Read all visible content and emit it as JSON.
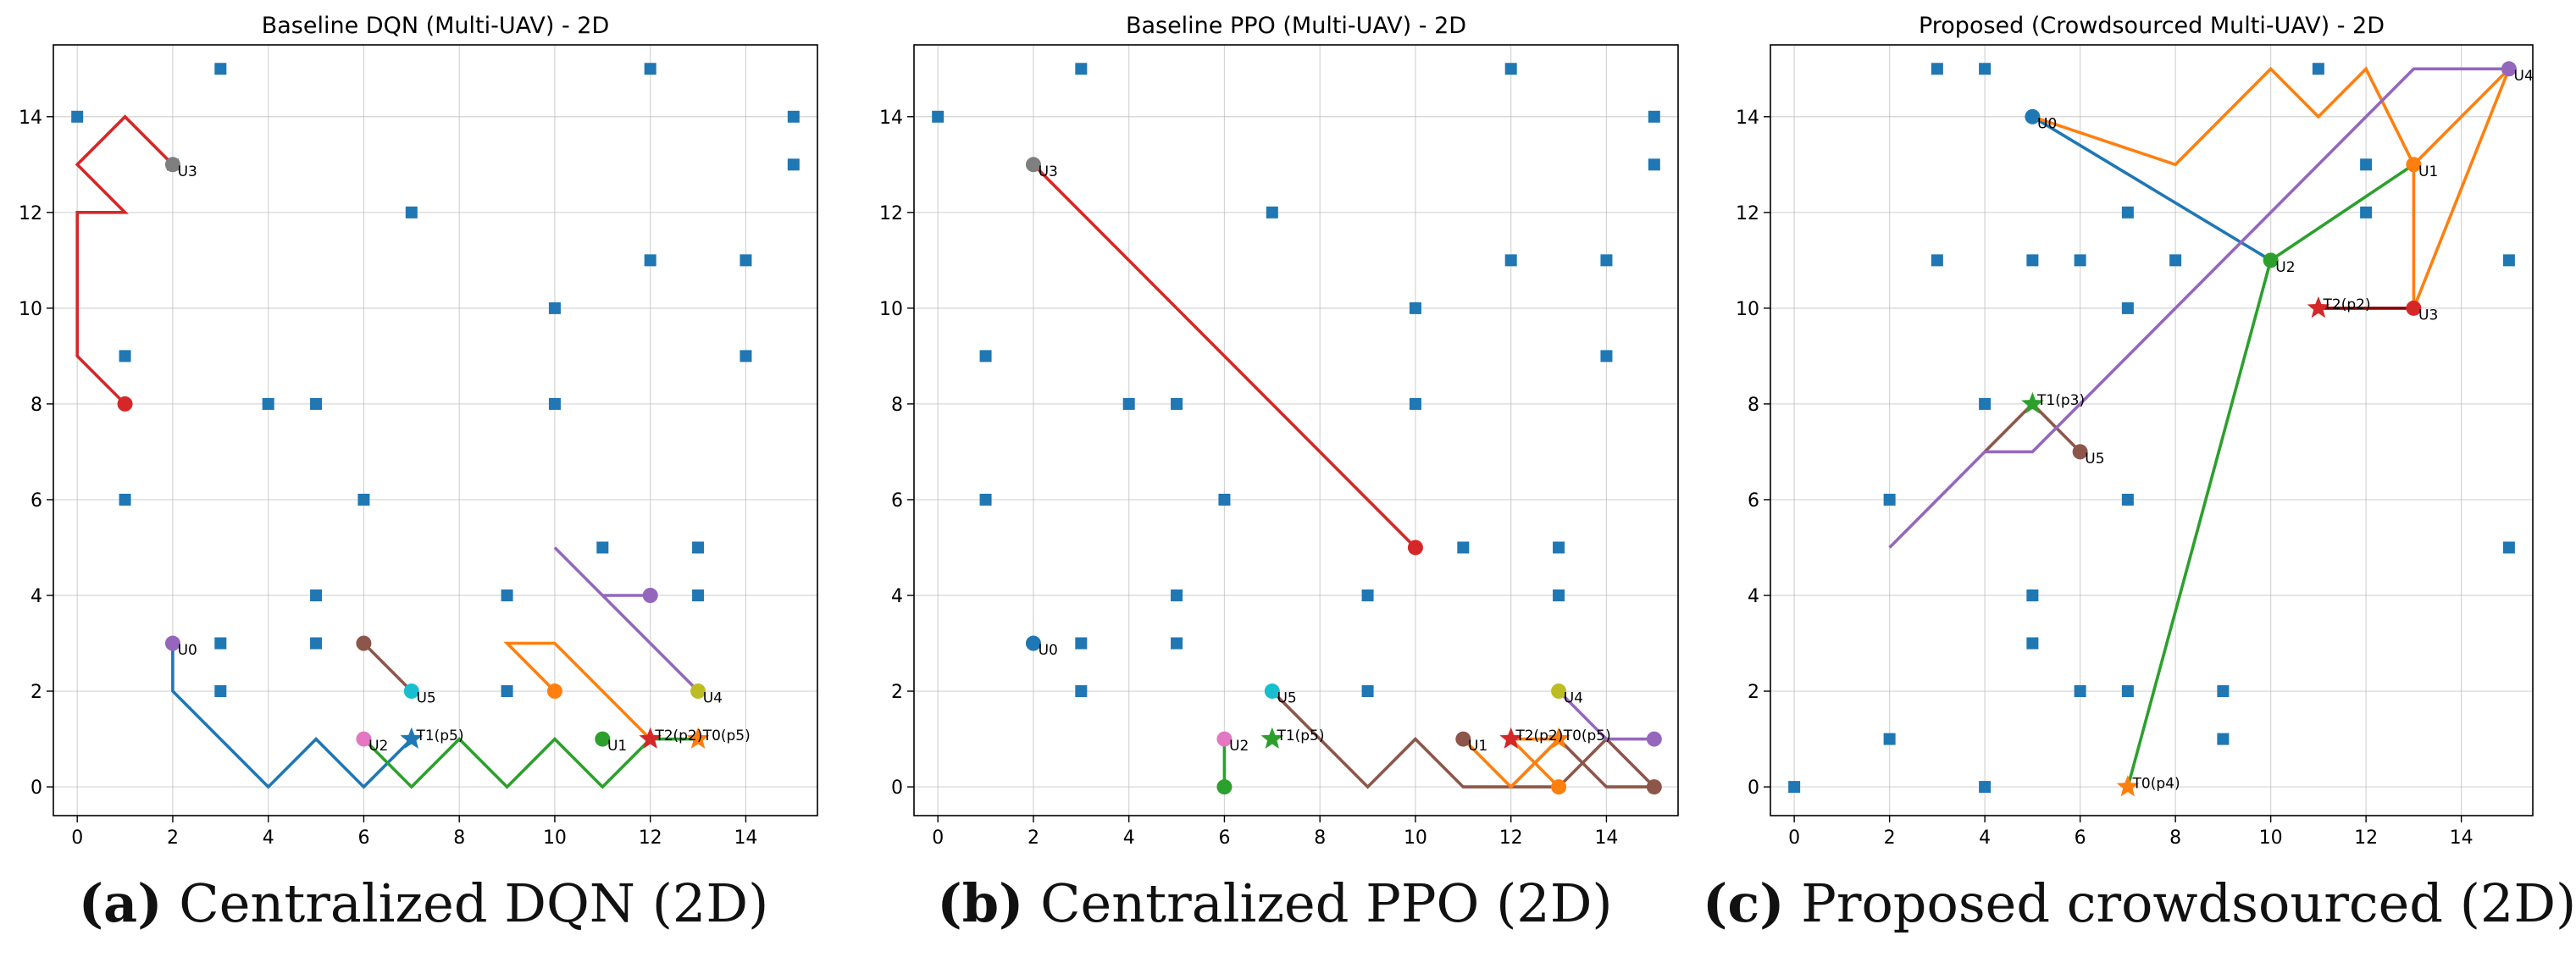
{
  "chart_data": [
    {
      "type": "scatter",
      "title": "Baseline DQN (Multi-UAV) - 2D",
      "caption_letter": "(a)",
      "caption_text": " Centralized DQN (2D)",
      "xlim": [
        -0.5,
        15.5
      ],
      "ylim": [
        -0.6,
        15.5
      ],
      "xticks": [
        0,
        2,
        4,
        6,
        8,
        10,
        12,
        14
      ],
      "yticks": [
        0,
        2,
        4,
        6,
        8,
        10,
        12,
        14
      ],
      "grid": true,
      "obstacles": [
        [
          0,
          14
        ],
        [
          1,
          9
        ],
        [
          1,
          6
        ],
        [
          2,
          13
        ],
        [
          3,
          15
        ],
        [
          3,
          3
        ],
        [
          3,
          2
        ],
        [
          4,
          8
        ],
        [
          5,
          8
        ],
        [
          5,
          4
        ],
        [
          5,
          3
        ],
        [
          6,
          6
        ],
        [
          7,
          12
        ],
        [
          9,
          4
        ],
        [
          9,
          2
        ],
        [
          10,
          10
        ],
        [
          10,
          8
        ],
        [
          11,
          5
        ],
        [
          12,
          15
        ],
        [
          12,
          11
        ],
        [
          13,
          5
        ],
        [
          13,
          4
        ],
        [
          14,
          11
        ],
        [
          14,
          9
        ],
        [
          15,
          14
        ],
        [
          15,
          13
        ]
      ],
      "paths": [
        {
          "color": "#d62728",
          "points": [
            [
              1,
              8
            ],
            [
              0,
              9
            ],
            [
              0,
              12
            ],
            [
              1,
              12
            ],
            [
              0,
              13
            ],
            [
              1,
              14
            ],
            [
              2,
              13
            ]
          ]
        },
        {
          "color": "#1f77b4",
          "points": [
            [
              2,
              3
            ],
            [
              2,
              2
            ],
            [
              3,
              1
            ],
            [
              4,
              0
            ],
            [
              5,
              1
            ],
            [
              6,
              0
            ],
            [
              7,
              1
            ]
          ]
        },
        {
          "color": "#2ca02c",
          "points": [
            [
              6,
              1
            ],
            [
              7,
              0
            ],
            [
              8,
              1
            ],
            [
              9,
              0
            ],
            [
              10,
              1
            ],
            [
              11,
              0
            ],
            [
              12,
              1
            ],
            [
              13,
              1
            ]
          ]
        },
        {
          "color": "#ff7f0e",
          "points": [
            [
              10,
              2
            ],
            [
              9,
              3
            ],
            [
              10,
              3
            ],
            [
              12,
              1
            ]
          ]
        },
        {
          "color": "#9467bd",
          "points": [
            [
              12,
              4
            ],
            [
              11,
              4
            ],
            [
              10,
              5
            ],
            [
              11,
              4
            ],
            [
              13,
              2
            ]
          ]
        },
        {
          "color": "#8c564b",
          "points": [
            [
              6,
              3
            ],
            [
              7,
              2
            ]
          ]
        }
      ],
      "dots": [
        {
          "x": 1,
          "y": 8,
          "color": "#d62728"
        },
        {
          "x": 2,
          "y": 13,
          "color": "#7f7f7f"
        },
        {
          "x": 2,
          "y": 3,
          "color": "#9467bd"
        },
        {
          "x": 6,
          "y": 3,
          "color": "#8c564b"
        },
        {
          "x": 7,
          "y": 2,
          "color": "#17becf"
        },
        {
          "x": 6,
          "y": 1,
          "color": "#e377c2"
        },
        {
          "x": 10,
          "y": 2,
          "color": "#ff7f0e"
        },
        {
          "x": 11,
          "y": 1,
          "color": "#2ca02c"
        },
        {
          "x": 12,
          "y": 4,
          "color": "#9467bd"
        },
        {
          "x": 13,
          "y": 2,
          "color": "#bcbd22"
        }
      ],
      "stars": [
        {
          "x": 7,
          "y": 1,
          "color": "#1f77b4"
        },
        {
          "x": 12,
          "y": 1,
          "color": "#d62728"
        },
        {
          "x": 13,
          "y": 1,
          "color": "#ff7f0e"
        }
      ],
      "labels": [
        {
          "text": "U3",
          "x": 2,
          "y": 13,
          "dx": 0.1,
          "dy": -0.1
        },
        {
          "text": "U0",
          "x": 2,
          "y": 3,
          "dx": 0.1,
          "dy": -0.1
        },
        {
          "text": "U5",
          "x": 7,
          "y": 2,
          "dx": 0.1,
          "dy": -0.1
        },
        {
          "text": "U2",
          "x": 6,
          "y": 1,
          "dx": 0.1,
          "dy": -0.1
        },
        {
          "text": "U1",
          "x": 11,
          "y": 1,
          "dx": 0.1,
          "dy": -0.1
        },
        {
          "text": "U4",
          "x": 13,
          "y": 2,
          "dx": 0.1,
          "dy": -0.1
        },
        {
          "text": "T1(p5)",
          "x": 7,
          "y": 1,
          "dx": 0.1,
          "dy": 0.12
        },
        {
          "text": "T2(p2)",
          "x": 12,
          "y": 1,
          "dx": 0.1,
          "dy": 0.12
        },
        {
          "text": "T0(p5)",
          "x": 13,
          "y": 1,
          "dx": 0.1,
          "dy": 0.12
        }
      ]
    },
    {
      "type": "scatter",
      "title": "Baseline PPO (Multi-UAV) - 2D",
      "caption_letter": "(b)",
      "caption_text": " Centralized PPO (2D)",
      "xlim": [
        -0.5,
        15.5
      ],
      "ylim": [
        -0.6,
        15.5
      ],
      "xticks": [
        0,
        2,
        4,
        6,
        8,
        10,
        12,
        14
      ],
      "yticks": [
        0,
        2,
        4,
        6,
        8,
        10,
        12,
        14
      ],
      "grid": true,
      "obstacles": [
        [
          0,
          14
        ],
        [
          1,
          9
        ],
        [
          1,
          6
        ],
        [
          3,
          15
        ],
        [
          3,
          3
        ],
        [
          3,
          2
        ],
        [
          4,
          8
        ],
        [
          5,
          8
        ],
        [
          5,
          4
        ],
        [
          5,
          3
        ],
        [
          6,
          6
        ],
        [
          7,
          12
        ],
        [
          9,
          4
        ],
        [
          9,
          2
        ],
        [
          10,
          10
        ],
        [
          10,
          8
        ],
        [
          11,
          5
        ],
        [
          12,
          15
        ],
        [
          12,
          11
        ],
        [
          13,
          5
        ],
        [
          13,
          4
        ],
        [
          14,
          11
        ],
        [
          14,
          9
        ],
        [
          15,
          14
        ],
        [
          15,
          13
        ]
      ],
      "paths": [
        {
          "color": "#d62728",
          "points": [
            [
              2,
              13
            ],
            [
              10,
              5
            ]
          ]
        },
        {
          "color": "#2ca02c",
          "points": [
            [
              6,
              1
            ],
            [
              6,
              0
            ]
          ]
        },
        {
          "color": "#8c564b",
          "points": [
            [
              7,
              2
            ],
            [
              8,
              1
            ],
            [
              9,
              0
            ],
            [
              10,
              1
            ],
            [
              11,
              0
            ],
            [
              13,
              0
            ],
            [
              14,
              1
            ],
            [
              15,
              0
            ],
            [
              14,
              0
            ],
            [
              13,
              1
            ],
            [
              12,
              0
            ]
          ]
        },
        {
          "color": "#ff7f0e",
          "points": [
            [
              11,
              1
            ],
            [
              12,
              0
            ],
            [
              13,
              1
            ],
            [
              12,
              1
            ],
            [
              13,
              0
            ]
          ]
        },
        {
          "color": "#9467bd",
          "points": [
            [
              13,
              2
            ],
            [
              14,
              1
            ],
            [
              15,
              1
            ]
          ]
        }
      ],
      "dots": [
        {
          "x": 2,
          "y": 13,
          "color": "#7f7f7f"
        },
        {
          "x": 10,
          "y": 5,
          "color": "#d62728"
        },
        {
          "x": 2,
          "y": 3,
          "color": "#1f77b4"
        },
        {
          "x": 7,
          "y": 2,
          "color": "#17becf"
        },
        {
          "x": 6,
          "y": 1,
          "color": "#e377c2"
        },
        {
          "x": 6,
          "y": 0,
          "color": "#2ca02c"
        },
        {
          "x": 11,
          "y": 1,
          "color": "#8c564b"
        },
        {
          "x": 13,
          "y": 2,
          "color": "#bcbd22"
        },
        {
          "x": 13,
          "y": 0,
          "color": "#ff7f0e"
        },
        {
          "x": 15,
          "y": 1,
          "color": "#9467bd"
        },
        {
          "x": 15,
          "y": 0,
          "color": "#8c564b"
        }
      ],
      "stars": [
        {
          "x": 7,
          "y": 1,
          "color": "#2ca02c"
        },
        {
          "x": 12,
          "y": 1,
          "color": "#d62728"
        },
        {
          "x": 13,
          "y": 1,
          "color": "#ff7f0e"
        }
      ],
      "labels": [
        {
          "text": "U3",
          "x": 2,
          "y": 13,
          "dx": 0.1,
          "dy": -0.1
        },
        {
          "text": "U0",
          "x": 2,
          "y": 3,
          "dx": 0.1,
          "dy": -0.1
        },
        {
          "text": "U5",
          "x": 7,
          "y": 2,
          "dx": 0.1,
          "dy": -0.1
        },
        {
          "text": "U2",
          "x": 6,
          "y": 1,
          "dx": 0.1,
          "dy": -0.1
        },
        {
          "text": "U1",
          "x": 11,
          "y": 1,
          "dx": 0.1,
          "dy": -0.1
        },
        {
          "text": "U4",
          "x": 13,
          "y": 2,
          "dx": 0.1,
          "dy": -0.1
        },
        {
          "text": "T1(p5)",
          "x": 7,
          "y": 1,
          "dx": 0.1,
          "dy": 0.12
        },
        {
          "text": "T2(p2)",
          "x": 12,
          "y": 1,
          "dx": 0.1,
          "dy": 0.12
        },
        {
          "text": "T0(p5)",
          "x": 13,
          "y": 1,
          "dx": 0.1,
          "dy": 0.12
        }
      ]
    },
    {
      "type": "scatter",
      "title": "Proposed (Crowdsourced Multi-UAV) - 2D",
      "caption_letter": "(c)",
      "caption_text": " Proposed crowdsourced (2D)",
      "xlim": [
        -0.5,
        15.5
      ],
      "ylim": [
        -0.6,
        15.5
      ],
      "xticks": [
        0,
        2,
        4,
        6,
        8,
        10,
        12,
        14
      ],
      "yticks": [
        0,
        2,
        4,
        6,
        8,
        10,
        12,
        14
      ],
      "grid": true,
      "obstacles": [
        [
          0,
          0
        ],
        [
          2,
          6
        ],
        [
          2,
          1
        ],
        [
          3,
          15
        ],
        [
          3,
          11
        ],
        [
          4,
          15
        ],
        [
          4,
          8
        ],
        [
          4,
          0
        ],
        [
          5,
          11
        ],
        [
          5,
          4
        ],
        [
          5,
          3
        ],
        [
          6,
          11
        ],
        [
          6,
          2
        ],
        [
          7,
          12
        ],
        [
          7,
          10
        ],
        [
          7,
          6
        ],
        [
          7,
          2
        ],
        [
          8,
          11
        ],
        [
          9,
          2
        ],
        [
          9,
          1
        ],
        [
          11,
          15
        ],
        [
          12,
          13
        ],
        [
          12,
          12
        ],
        [
          15,
          11
        ],
        [
          15,
          5
        ]
      ],
      "paths": [
        {
          "color": "#1f77b4",
          "points": [
            [
              5,
              14
            ],
            [
              10,
              11
            ]
          ]
        },
        {
          "color": "#ff7f0e",
          "points": [
            [
              5,
              14
            ],
            [
              8,
              13
            ],
            [
              10,
              15
            ],
            [
              11,
              14
            ],
            [
              12,
              15
            ],
            [
              13,
              13
            ],
            [
              13,
              10
            ],
            [
              15,
              15
            ],
            [
              13,
              13
            ]
          ]
        },
        {
          "color": "#2ca02c",
          "points": [
            [
              7,
              0
            ],
            [
              10,
              11
            ],
            [
              13,
              13
            ]
          ]
        },
        {
          "color": "#8b0000",
          "points": [
            [
              11,
              10
            ],
            [
              13,
              10
            ]
          ]
        },
        {
          "color": "#8c564b",
          "points": [
            [
              4,
              7
            ],
            [
              5,
              8
            ],
            [
              6,
              7
            ]
          ]
        },
        {
          "color": "#9467bd",
          "points": [
            [
              2,
              5
            ],
            [
              4,
              7
            ],
            [
              5,
              7
            ],
            [
              13,
              15
            ],
            [
              15,
              15
            ]
          ]
        }
      ],
      "dots": [
        {
          "x": 5,
          "y": 14,
          "color": "#1f77b4"
        },
        {
          "x": 10,
          "y": 11,
          "color": "#2ca02c"
        },
        {
          "x": 13,
          "y": 13,
          "color": "#ff7f0e"
        },
        {
          "x": 13,
          "y": 10,
          "color": "#d62728"
        },
        {
          "x": 6,
          "y": 7,
          "color": "#8c564b"
        },
        {
          "x": 15,
          "y": 15,
          "color": "#9467bd"
        }
      ],
      "stars": [
        {
          "x": 7,
          "y": 0,
          "color": "#ff7f0e"
        },
        {
          "x": 11,
          "y": 10,
          "color": "#d62728"
        },
        {
          "x": 5,
          "y": 8,
          "color": "#2ca02c"
        }
      ],
      "labels": [
        {
          "text": "U0",
          "x": 5,
          "y": 14,
          "dx": 0.1,
          "dy": -0.1
        },
        {
          "text": "U1",
          "x": 13,
          "y": 13,
          "dx": 0.1,
          "dy": -0.1
        },
        {
          "text": "U2",
          "x": 10,
          "y": 11,
          "dx": 0.1,
          "dy": -0.1
        },
        {
          "text": "U3",
          "x": 13,
          "y": 10,
          "dx": 0.1,
          "dy": -0.1
        },
        {
          "text": "U4",
          "x": 15,
          "y": 15,
          "dx": 0.1,
          "dy": -0.1
        },
        {
          "text": "U5",
          "x": 6,
          "y": 7,
          "dx": 0.1,
          "dy": -0.1
        },
        {
          "text": "T0(p4)",
          "x": 7,
          "y": 0,
          "dx": 0.1,
          "dy": 0.12
        },
        {
          "text": "T2(p2)",
          "x": 11,
          "y": 10,
          "dx": 0.1,
          "dy": 0.12
        },
        {
          "text": "T1(p3)",
          "x": 5,
          "y": 8,
          "dx": 0.1,
          "dy": 0.12
        }
      ]
    }
  ]
}
